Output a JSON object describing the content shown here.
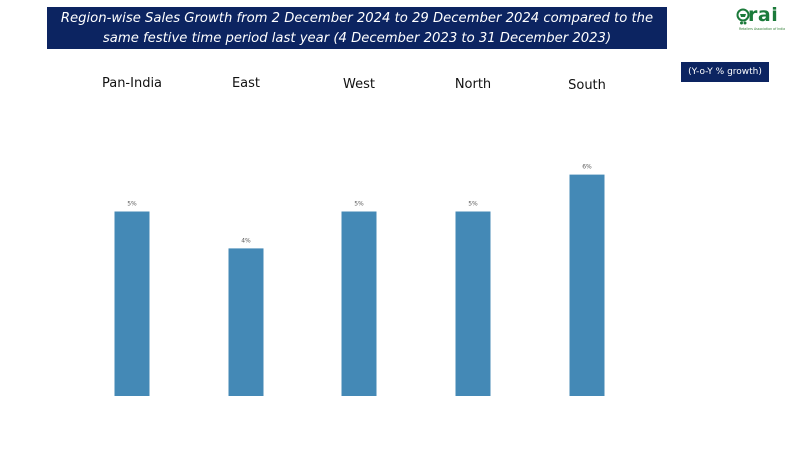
{
  "chart_data": {
    "type": "bar",
    "title_line1": "Region-wise Sales Growth from 2 December 2024 to 29 December 2024 compared to the",
    "title_line2": "same festive time period last year (4 December 2023 to 31 December 2023)",
    "unit_label": "(Y-o-Y % growth)",
    "categories": [
      "Pan-India",
      "East",
      "West",
      "North",
      "South"
    ],
    "values": [
      5,
      4,
      5,
      5,
      6
    ],
    "value_labels": [
      "5%",
      "4%",
      "5%",
      "5%",
      "6%"
    ],
    "ylim": [
      0,
      6.6
    ],
    "bar_color": "#4489b6",
    "grid": false,
    "legend": "none"
  },
  "logo": {
    "text": "rai",
    "tagline": "Retailers Association of India",
    "color": "#1b7a3a"
  }
}
